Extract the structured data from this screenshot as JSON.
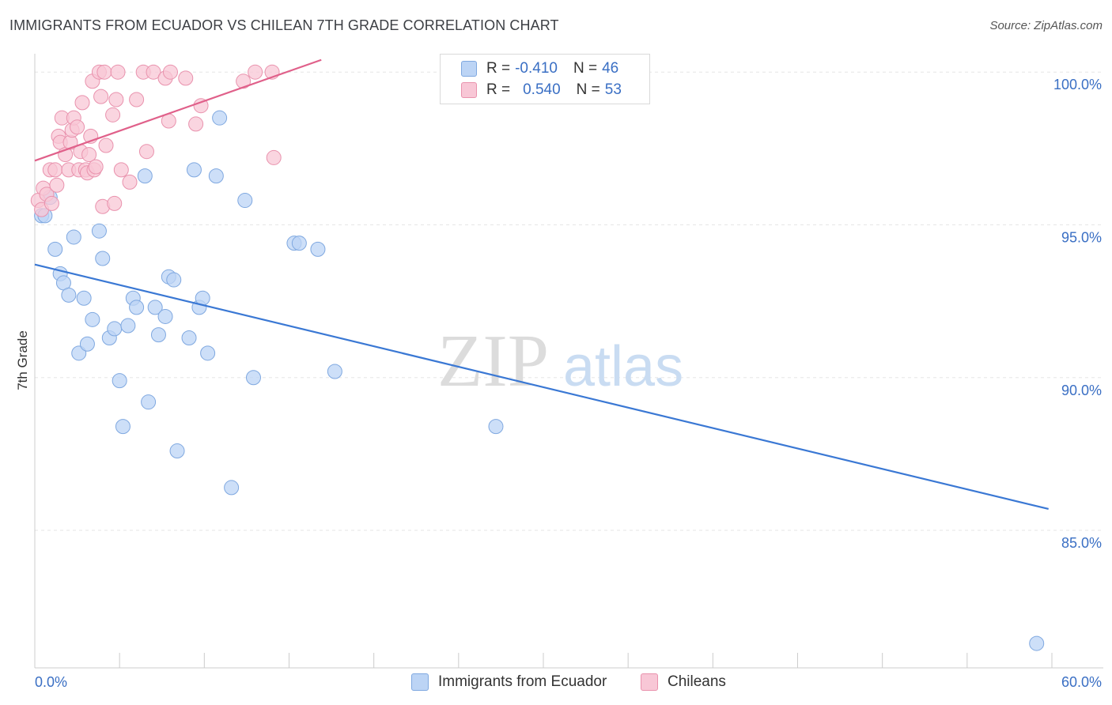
{
  "title": "IMMIGRANTS FROM ECUADOR VS CHILEAN 7TH GRADE CORRELATION CHART",
  "source": "Source: ZipAtlas.com",
  "watermark": {
    "zip": "ZIP",
    "atlas": "atlas"
  },
  "legend": {
    "r_label": "R =",
    "n_label": "N =",
    "rows": [
      {
        "r": "-0.410",
        "n": "46",
        "fill": "#bcd4f5",
        "stroke": "#7fa8e0"
      },
      {
        "r": "0.540",
        "n": "53",
        "fill": "#f8c7d6",
        "stroke": "#e992ad"
      }
    ]
  },
  "bottom_legend": [
    {
      "label": "Immigrants from Ecuador",
      "fill": "#bcd4f5",
      "stroke": "#7fa8e0"
    },
    {
      "label": "Chileans",
      "fill": "#f8c7d6",
      "stroke": "#e992ad"
    }
  ],
  "chart_data": {
    "type": "scatter",
    "xlabel": "",
    "ylabel": "7th Grade",
    "xlim": [
      0,
      60
    ],
    "ylim": [
      80.5,
      100.6
    ],
    "x_tick_labels": [
      "0.0%",
      "60.0%"
    ],
    "y_ticks": [
      100,
      95,
      90,
      85
    ],
    "y_tick_labels": [
      "100.0%",
      "95.0%",
      "90.0%",
      "85.0%"
    ],
    "grid": true,
    "series": [
      {
        "name": "Immigrants from Ecuador",
        "color": "#3a78d4",
        "fill": "#bcd4f5",
        "stroke": "#7fa8e0",
        "trend": {
          "x": [
            0,
            59.8
          ],
          "y": [
            93.7,
            85.7
          ]
        },
        "points": [
          [
            0.4,
            95.3
          ],
          [
            1.2,
            94.2
          ],
          [
            1.5,
            93.4
          ],
          [
            1.7,
            93.1
          ],
          [
            2.0,
            92.7
          ],
          [
            2.3,
            94.6
          ],
          [
            2.6,
            90.8
          ],
          [
            2.9,
            92.6
          ],
          [
            3.1,
            91.1
          ],
          [
            3.4,
            91.9
          ],
          [
            3.8,
            94.8
          ],
          [
            4.0,
            93.9
          ],
          [
            4.4,
            91.3
          ],
          [
            4.7,
            91.6
          ],
          [
            5.0,
            89.9
          ],
          [
            5.2,
            88.4
          ],
          [
            5.5,
            91.7
          ],
          [
            5.8,
            92.6
          ],
          [
            6.0,
            92.3
          ],
          [
            6.5,
            96.6
          ],
          [
            6.7,
            89.2
          ],
          [
            7.1,
            92.3
          ],
          [
            7.3,
            91.4
          ],
          [
            7.7,
            92.0
          ],
          [
            7.9,
            93.3
          ],
          [
            8.2,
            93.2
          ],
          [
            8.4,
            87.6
          ],
          [
            9.1,
            91.3
          ],
          [
            9.4,
            96.8
          ],
          [
            9.7,
            92.3
          ],
          [
            9.9,
            92.6
          ],
          [
            10.2,
            90.8
          ],
          [
            10.7,
            96.6
          ],
          [
            10.9,
            98.5
          ],
          [
            11.6,
            86.4
          ],
          [
            12.4,
            95.8
          ],
          [
            12.9,
            90.0
          ],
          [
            15.3,
            94.4
          ],
          [
            15.6,
            94.4
          ],
          [
            16.7,
            94.2
          ],
          [
            17.7,
            90.2
          ],
          [
            27.2,
            88.4
          ],
          [
            59.1,
            81.3
          ],
          [
            0.6,
            95.3
          ],
          [
            0.9,
            95.9
          ],
          [
            26.5,
            99.5
          ]
        ]
      },
      {
        "name": "Chileans",
        "color": "#e0608a",
        "fill": "#f8c7d6",
        "stroke": "#e992ad",
        "trend": {
          "x": [
            0,
            16.9
          ],
          "y": [
            97.1,
            100.4
          ]
        },
        "points": [
          [
            0.2,
            95.8
          ],
          [
            0.4,
            95.5
          ],
          [
            0.5,
            96.2
          ],
          [
            0.7,
            96.0
          ],
          [
            0.9,
            96.8
          ],
          [
            1.0,
            95.7
          ],
          [
            1.2,
            96.8
          ],
          [
            1.3,
            96.3
          ],
          [
            1.4,
            97.9
          ],
          [
            1.5,
            97.7
          ],
          [
            1.6,
            98.5
          ],
          [
            1.8,
            97.3
          ],
          [
            2.0,
            96.8
          ],
          [
            2.1,
            97.7
          ],
          [
            2.2,
            98.1
          ],
          [
            2.3,
            98.5
          ],
          [
            2.5,
            98.2
          ],
          [
            2.6,
            96.8
          ],
          [
            2.7,
            97.4
          ],
          [
            2.8,
            99.0
          ],
          [
            3.0,
            96.8
          ],
          [
            3.1,
            96.7
          ],
          [
            3.2,
            97.3
          ],
          [
            3.3,
            97.9
          ],
          [
            3.4,
            99.7
          ],
          [
            3.5,
            96.8
          ],
          [
            3.6,
            96.9
          ],
          [
            3.8,
            100.0
          ],
          [
            3.9,
            99.2
          ],
          [
            4.0,
            95.6
          ],
          [
            4.1,
            100.0
          ],
          [
            4.2,
            97.6
          ],
          [
            4.6,
            98.6
          ],
          [
            4.7,
            95.7
          ],
          [
            4.8,
            99.1
          ],
          [
            4.9,
            100.0
          ],
          [
            5.1,
            96.8
          ],
          [
            5.6,
            96.4
          ],
          [
            6.0,
            99.1
          ],
          [
            6.4,
            100.0
          ],
          [
            6.6,
            97.4
          ],
          [
            7.0,
            100.0
          ],
          [
            7.7,
            99.8
          ],
          [
            7.9,
            98.4
          ],
          [
            8.0,
            100.0
          ],
          [
            8.9,
            99.8
          ],
          [
            9.5,
            98.3
          ],
          [
            9.8,
            98.9
          ],
          [
            12.3,
            99.7
          ],
          [
            13.0,
            100.0
          ],
          [
            14.0,
            100.0
          ],
          [
            14.1,
            97.2
          ],
          [
            24.5,
            100.0
          ]
        ]
      }
    ]
  }
}
